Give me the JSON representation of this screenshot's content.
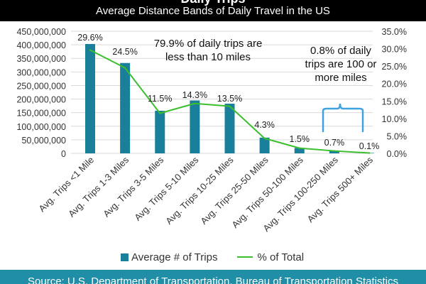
{
  "header": {
    "title": "Daily Trips",
    "subtitle": "Average Distance Bands of Daily Travel in the US"
  },
  "footer": {
    "source": "Source: U.S. Department of Transportation, Bureau of Transportation Statistics"
  },
  "annotations": [
    "79.9% of daily trips are less than 10 miles",
    "0.8% of daily trips are 100 or more miles"
  ],
  "legend": {
    "bar_label": "Average # of Trips",
    "line_label": "% of Total"
  },
  "colors": {
    "bar": "#1a7f9b",
    "line": "#3bbf2f",
    "bracket": "#3fa3e0",
    "footer": "#1f8ea6"
  },
  "chart_data": {
    "type": "bar",
    "title": "Average Distance Bands of Daily Travel in the US",
    "categories": [
      "Avg. Trips <1 Mile",
      "Avg. Trips 1-3 Miles",
      "Avg. Trips 3-5 Miles",
      "Avg. Trips 5-10 Miles",
      "Avg. Trips 10-25 Miles",
      "Avg. Trips 25-50 Miles",
      "Avg. Trips 50-100 Miles",
      "Avg. Trips 100-250 Miles",
      "Avg. Trips 500+ Miles"
    ],
    "series": [
      {
        "name": "Average # of Trips",
        "type": "bar",
        "axis": "left",
        "values": [
          403000000,
          333000000,
          157000000,
          195000000,
          183000000,
          58000000,
          20000000,
          9000000,
          1500000
        ]
      },
      {
        "name": "% of Total",
        "type": "line",
        "axis": "right",
        "values": [
          29.6,
          24.5,
          11.5,
          14.3,
          13.5,
          4.3,
          1.5,
          0.7,
          0.1
        ]
      }
    ],
    "data_labels": [
      "29.6%",
      "24.5%",
      "11.5%",
      "14.3%",
      "13.5%",
      "4.3%",
      "1.5%",
      "0.7%",
      "0.1%"
    ],
    "y_left": {
      "range": [
        0,
        450000000
      ],
      "ticks": [
        "0",
        "50,000,000",
        "100,000,000",
        "150,000,000",
        "200,000,000",
        "250,000,000",
        "300,000,000",
        "350,000,000",
        "400,000,000",
        "450,000,000"
      ]
    },
    "y_right": {
      "range": [
        0,
        35
      ],
      "ticks": [
        "0.0%",
        "5.0%",
        "10.0%",
        "15.0%",
        "20.0%",
        "25.0%",
        "30.0%",
        "35.0%"
      ]
    },
    "gridlines": true,
    "legend_position": "bottom"
  }
}
